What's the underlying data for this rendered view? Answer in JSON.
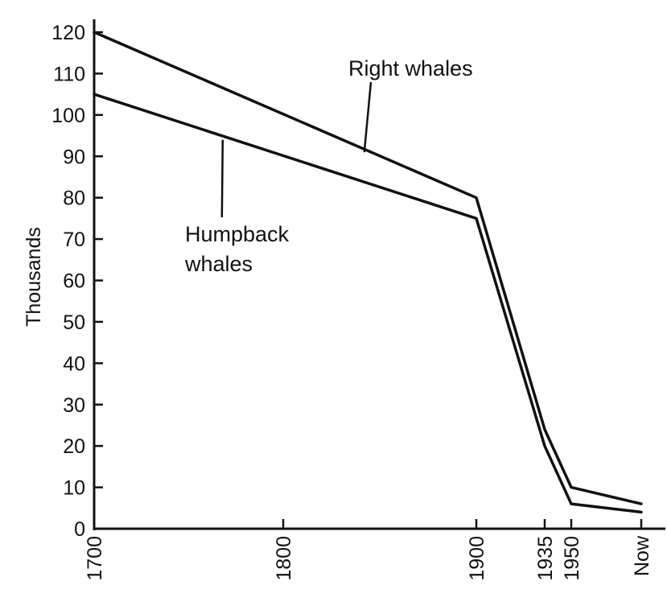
{
  "chart_data": {
    "type": "line",
    "title": "",
    "xlabel": "",
    "ylabel": "Thousands",
    "ylim": [
      0,
      120
    ],
    "yticks": [
      "0",
      "10",
      "20",
      "30",
      "40",
      "50",
      "60",
      "70",
      "80",
      "90",
      "100",
      "110",
      "120"
    ],
    "xticks": [
      {
        "label": "1700",
        "value": 1700
      },
      {
        "label": "1800",
        "value": 1800
      },
      {
        "label": "1900",
        "value": 1900
      },
      {
        "label": "1935",
        "value": 1935
      },
      {
        "label": "1950",
        "value": 1950
      },
      {
        "label": "Now",
        "value": 1985
      }
    ],
    "grid": false,
    "legend": "none",
    "series": [
      {
        "name": "Right whales",
        "x": [
          1700,
          1900,
          1935,
          1950,
          1985
        ],
        "y": [
          120,
          80,
          24,
          10,
          6
        ]
      },
      {
        "name": "Humpback whales",
        "x": [
          1700,
          1900,
          1935,
          1950,
          1985
        ],
        "y": [
          105,
          75,
          20,
          6,
          4
        ]
      }
    ],
    "annotations": [
      {
        "series": "Right whales",
        "text": [
          "Right whales"
        ],
        "pointer_x": 1842,
        "pointer_y": 91
      },
      {
        "series": "Humpback whales",
        "text": [
          "Humpback",
          "whales"
        ],
        "pointer_x": 1768,
        "pointer_y": 94
      }
    ]
  }
}
